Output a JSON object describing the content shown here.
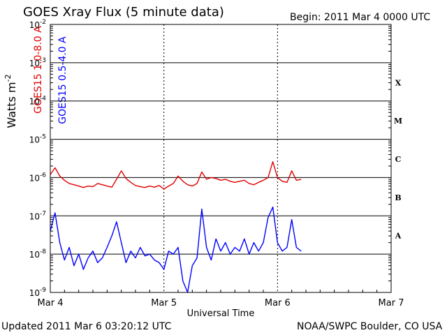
{
  "header": {
    "title": "GOES Xray Flux (5 minute data)",
    "begin": "Begin:  2011 Mar 4 0000 UTC"
  },
  "footer": {
    "updated": "Updated 2011 Mar  6 03:20:12 UTC",
    "credit": "NOAA/SWPC Boulder, CO USA"
  },
  "chart_data": {
    "type": "line",
    "title": "GOES Xray Flux (5 minute data)",
    "xlabel": "Universal Time",
    "ylabel": "Watts m",
    "ylabel_superscript": "-2",
    "y_scale": "log",
    "ylim": [
      1e-09,
      0.01
    ],
    "xlim": [
      "2011-03-04 00:00",
      "2011-03-07 00:00"
    ],
    "x_ticks": [
      "Mar 4",
      "Mar 5",
      "Mar 6",
      "Mar 7"
    ],
    "y_ticks": [
      {
        "base": "10",
        "exp": "-9"
      },
      {
        "base": "10",
        "exp": "-8"
      },
      {
        "base": "10",
        "exp": "-7"
      },
      {
        "base": "10",
        "exp": "-6"
      },
      {
        "base": "10",
        "exp": "-5"
      },
      {
        "base": "10",
        "exp": "-4"
      },
      {
        "base": "10",
        "exp": "-3"
      },
      {
        "base": "10",
        "exp": "-2"
      }
    ],
    "flare_classes": [
      "A",
      "B",
      "C",
      "M",
      "X"
    ],
    "grid": true,
    "colors": {
      "long": "#e00000",
      "short": "#0000ff",
      "axes": "#000000"
    },
    "series": [
      {
        "name": "GOES15 1.0-8.0 A",
        "color": "#e00000",
        "x_hours": [
          0,
          1,
          2,
          3,
          4,
          5,
          6,
          7,
          8,
          9,
          10,
          11,
          12,
          13,
          14,
          15,
          16,
          17,
          18,
          19,
          20,
          21,
          22,
          23,
          24,
          25,
          26,
          27,
          28,
          29,
          30,
          31,
          32,
          33,
          34,
          35,
          36,
          37,
          38,
          39,
          40,
          41,
          42,
          43,
          44,
          45,
          46,
          47,
          48,
          49,
          50,
          51,
          52,
          53
        ],
        "values": [
          1.2e-06,
          1.8e-06,
          1.1e-06,
          8.5e-07,
          7e-07,
          6.5e-07,
          6e-07,
          5.5e-07,
          6e-07,
          5.8e-07,
          7e-07,
          6.5e-07,
          6e-07,
          5.6e-07,
          9e-07,
          1.5e-06,
          9.5e-07,
          7.5e-07,
          6.2e-07,
          5.8e-07,
          5.5e-07,
          6e-07,
          5.6e-07,
          6.2e-07,
          5e-07,
          6e-07,
          7e-07,
          1.1e-06,
          8e-07,
          6.5e-07,
          6e-07,
          7e-07,
          1.4e-06,
          9e-07,
          1e-06,
          9.5e-07,
          8.5e-07,
          9e-07,
          8e-07,
          7.5e-07,
          8e-07,
          8.5e-07,
          7e-07,
          6.5e-07,
          7.5e-07,
          8.5e-07,
          1e-06,
          2.6e-06,
          1e-06,
          8e-07,
          7.5e-07,
          1.5e-06,
          8.5e-07,
          9e-07
        ]
      },
      {
        "name": "GOES15 0.5-4.0 A",
        "color": "#0000ff",
        "x_hours": [
          0,
          1,
          2,
          3,
          4,
          5,
          6,
          7,
          8,
          9,
          10,
          11,
          12,
          13,
          14,
          15,
          16,
          17,
          18,
          19,
          20,
          21,
          22,
          23,
          24,
          25,
          26,
          27,
          28,
          29,
          30,
          31,
          32,
          33,
          34,
          35,
          36,
          37,
          38,
          39,
          40,
          41,
          42,
          43,
          44,
          45,
          46,
          47,
          48,
          49,
          50,
          51,
          52,
          53
        ],
        "values": [
          4e-08,
          1.2e-07,
          2e-08,
          7e-09,
          1.5e-08,
          5e-09,
          1e-08,
          4e-09,
          8e-09,
          1.2e-08,
          6e-09,
          8e-09,
          1.5e-08,
          3e-08,
          7e-08,
          2e-08,
          6e-09,
          1.2e-08,
          8e-09,
          1.5e-08,
          9e-09,
          1e-08,
          7e-09,
          6e-09,
          4e-09,
          1.2e-08,
          1e-08,
          1.5e-08,
          2e-09,
          1e-09,
          5e-09,
          8e-09,
          1.5e-07,
          1.5e-08,
          7e-09,
          2.5e-08,
          1.2e-08,
          2e-08,
          1e-08,
          1.5e-08,
          1.2e-08,
          2.5e-08,
          1e-08,
          2e-08,
          1.2e-08,
          2e-08,
          9e-08,
          1.7e-07,
          2e-08,
          1.2e-08,
          1.5e-08,
          8e-08,
          1.5e-08,
          1.2e-08
        ]
      }
    ]
  }
}
